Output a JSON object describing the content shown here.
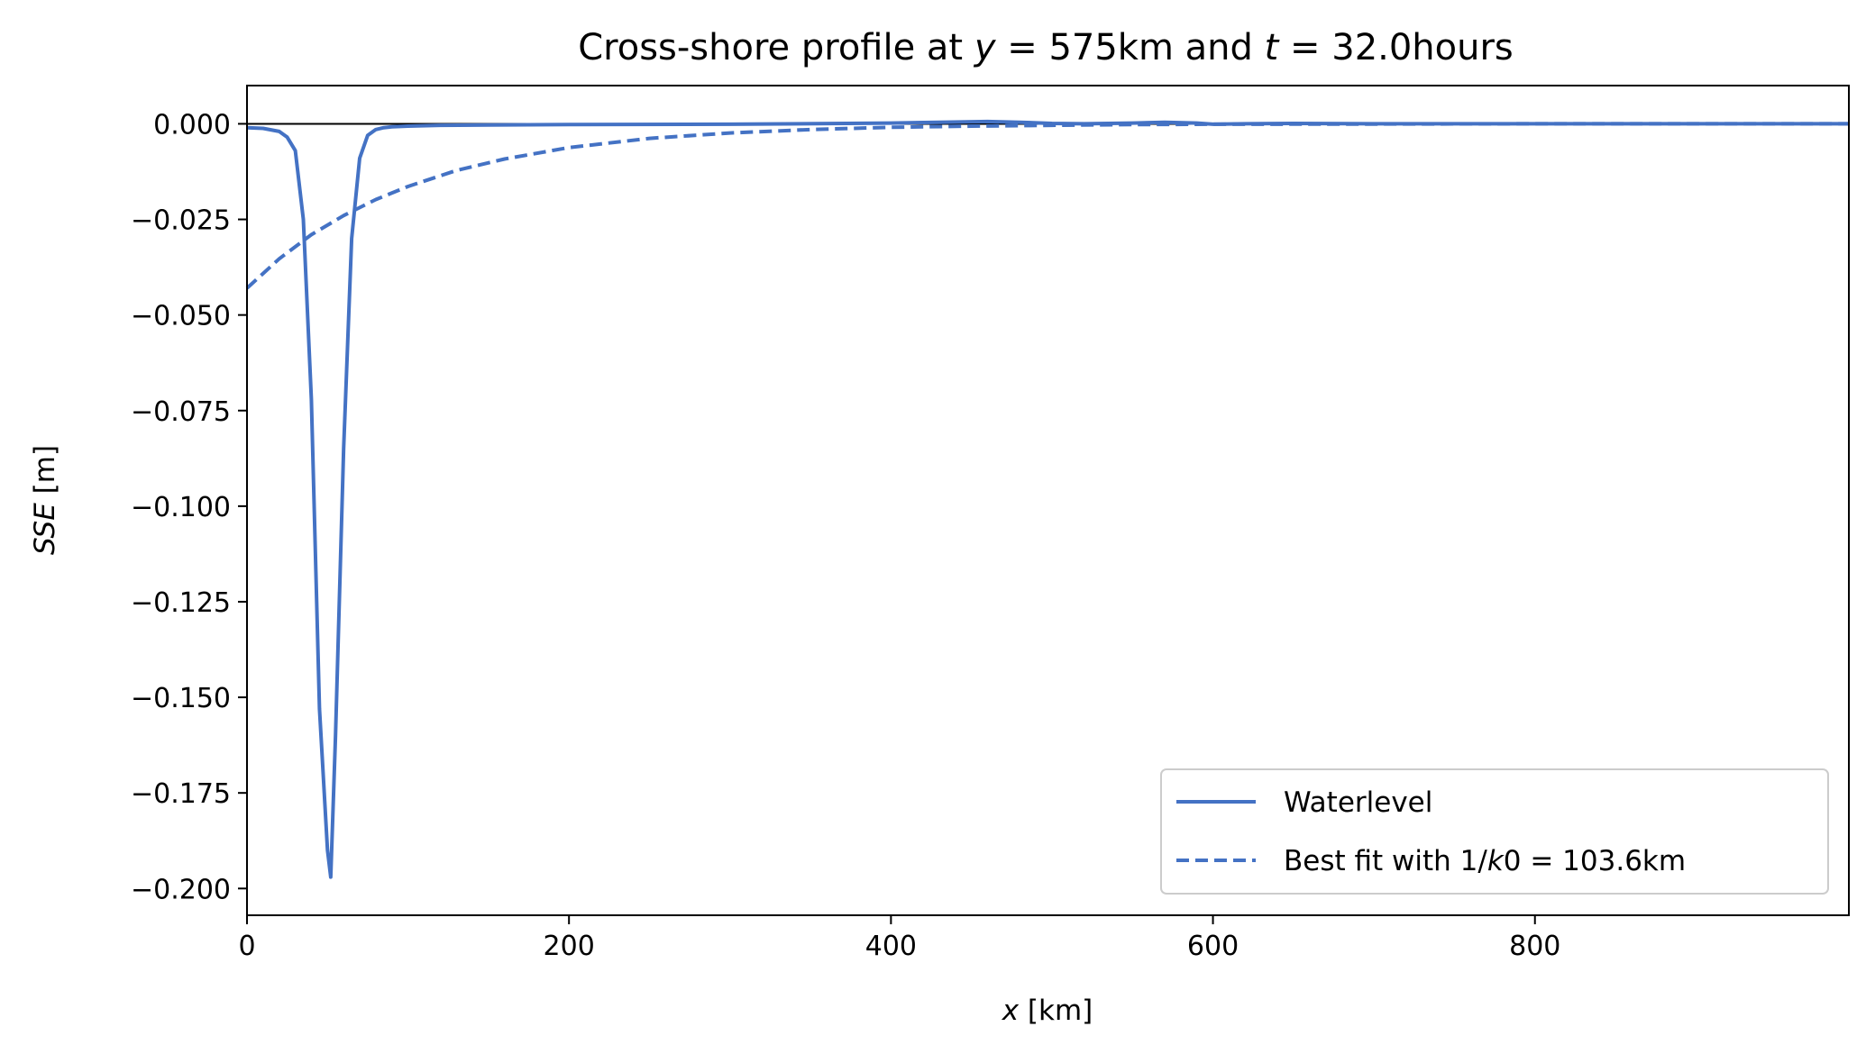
{
  "chart_data": {
    "type": "line",
    "title": "Cross-shore profile at y = 575km and t = 32.0hours",
    "xlabel": "x [km]",
    "ylabel": "SSE [m]",
    "xlim": [
      0,
      995
    ],
    "ylim": [
      -0.207,
      0.01
    ],
    "x_ticks": [
      0,
      200,
      400,
      600,
      800
    ],
    "y_ticks": [
      0.0,
      -0.025,
      -0.05,
      -0.075,
      -0.1,
      -0.125,
      -0.15,
      -0.175,
      -0.2
    ],
    "x_tick_labels": [
      "0",
      "200",
      "400",
      "600",
      "800"
    ],
    "y_tick_labels": [
      "0.000",
      "−0.025",
      "−0.050",
      "−0.075",
      "−0.100",
      "−0.125",
      "−0.150",
      "−0.175",
      "−0.200"
    ],
    "grid": false,
    "legend_position": "lower-right",
    "zero_line": true,
    "series": [
      {
        "name": "Waterlevel",
        "style": "solid",
        "color": "#4472C4",
        "x": [
          0,
          10,
          20,
          25,
          30,
          35,
          40,
          45,
          50,
          52,
          55,
          60,
          65,
          70,
          75,
          80,
          85,
          90,
          100,
          120,
          150,
          200,
          300,
          400,
          430,
          460,
          480,
          500,
          520,
          550,
          570,
          590,
          600,
          620,
          650,
          700,
          800,
          900,
          995
        ],
        "y": [
          -0.001,
          -0.0012,
          -0.002,
          -0.0035,
          -0.007,
          -0.025,
          -0.072,
          -0.153,
          -0.19,
          -0.197,
          -0.16,
          -0.085,
          -0.03,
          -0.009,
          -0.003,
          -0.0015,
          -0.001,
          -0.0008,
          -0.0006,
          -0.0004,
          -0.0003,
          -0.0002,
          -0.0001,
          0.0002,
          0.0004,
          0.0006,
          0.0004,
          0.0001,
          0.0,
          0.0002,
          0.0004,
          0.0002,
          -0.0001,
          0.0,
          0.0001,
          0.0,
          0.0,
          0.0,
          0.0
        ]
      },
      {
        "name": "Best fit with 1/k0 = 103.6km",
        "style": "dashed",
        "color": "#4472C4",
        "x": [
          0,
          20,
          40,
          60,
          80,
          100,
          130,
          160,
          200,
          250,
          300,
          350,
          400,
          450,
          500,
          550,
          600,
          700,
          800,
          900,
          995
        ],
        "y": [
          -0.043,
          -0.0353,
          -0.029,
          -0.024,
          -0.0198,
          -0.0164,
          -0.0122,
          -0.0092,
          -0.0062,
          -0.0038,
          -0.0024,
          -0.0015,
          -0.0009,
          -0.0006,
          -0.0004,
          -0.0002,
          -0.0001,
          -5e-05,
          0.0,
          0.0,
          0.0
        ]
      }
    ]
  }
}
